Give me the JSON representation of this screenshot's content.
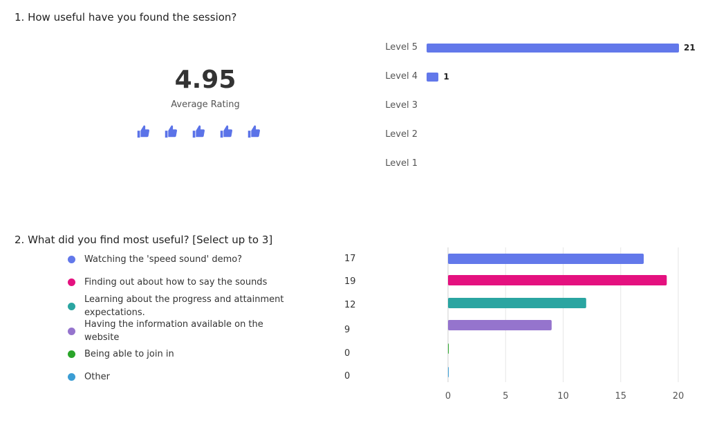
{
  "q1": {
    "title": "1. How useful have you found the session?",
    "average_value": "4.95",
    "average_label": "Average Rating",
    "icons": [
      "thumbs-up-icon",
      "thumbs-up-icon",
      "thumbs-up-icon",
      "thumbs-up-icon",
      "thumbs-up-icon"
    ],
    "icon_color": "#5b73e8"
  },
  "q2": {
    "title": "2. What did you find most useful? [Select up to 3]"
  },
  "chart_data": [
    {
      "type": "bar",
      "orientation": "horizontal",
      "categories": [
        "Level 5",
        "Level 4",
        "Level 3",
        "Level 2",
        "Level 1"
      ],
      "values": [
        21,
        1,
        0,
        0,
        0
      ],
      "data_labels": [
        "21",
        "1",
        "",
        "",
        ""
      ],
      "color": "#6278ea",
      "xlim": [
        0,
        21
      ]
    },
    {
      "type": "bar",
      "orientation": "horizontal",
      "categories": [
        "Watching the 'speed sound' demo?",
        "Finding out about how to say the sounds",
        "Learning about the progress and attainment expectations.",
        "Having the information available on the website",
        "Being able to join in",
        "Other"
      ],
      "values": [
        17,
        19,
        12,
        9,
        0,
        0
      ],
      "colors": [
        "#6278ea",
        "#e4117f",
        "#2aa5a1",
        "#9574cd",
        "#2aa52a",
        "#3b9dd4"
      ],
      "xlim": [
        0,
        20
      ],
      "xticks": [
        "0",
        "5",
        "10",
        "15",
        "20"
      ],
      "grid": true
    }
  ]
}
